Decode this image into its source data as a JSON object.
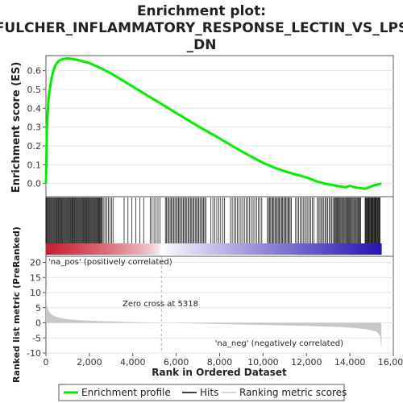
{
  "chart_data": {
    "type": "line",
    "title_lines": [
      "Enrichment plot:",
      "FULCHER_INFLAMMATORY_RESPONSE_LECTIN_VS_LPS",
      "_DN"
    ],
    "top_panel": {
      "ylabel": "Enrichment score (ES)",
      "ylim": [
        -0.07,
        0.68
      ],
      "yticks": [
        0.0,
        0.1,
        0.2,
        0.3,
        0.4,
        0.5,
        0.6
      ],
      "ytick_labels": [
        "0.0",
        "0.1",
        "0.2",
        "0.3",
        "0.4",
        "0.5",
        "0.6"
      ],
      "series": [
        {
          "name": "Enrichment profile",
          "color": "#00ee00",
          "x": [
            0,
            50,
            120,
            200,
            300,
            400,
            500,
            600,
            700,
            800,
            900,
            1000,
            1200,
            1500,
            2000,
            2500,
            3000,
            3500,
            4000,
            4500,
            5000,
            5500,
            6000,
            6500,
            7000,
            7500,
            8000,
            8500,
            9000,
            9500,
            10000,
            10500,
            11000,
            11500,
            12000,
            12500,
            13000,
            13200,
            13500,
            13800,
            14000,
            14200,
            14500,
            14700,
            14900,
            15100,
            15300,
            15450
          ],
          "y": [
            0.0,
            0.3,
            0.45,
            0.52,
            0.58,
            0.62,
            0.64,
            0.652,
            0.658,
            0.662,
            0.664,
            0.665,
            0.663,
            0.656,
            0.64,
            0.615,
            0.585,
            0.55,
            0.515,
            0.48,
            0.445,
            0.41,
            0.375,
            0.34,
            0.305,
            0.272,
            0.24,
            0.205,
            0.172,
            0.14,
            0.11,
            0.085,
            0.065,
            0.048,
            0.032,
            0.01,
            -0.005,
            -0.008,
            -0.015,
            -0.02,
            -0.012,
            -0.02,
            -0.025,
            -0.028,
            -0.02,
            -0.01,
            -0.005,
            0.0
          ]
        }
      ]
    },
    "hits": {
      "total_genes": 15450,
      "segments": [
        {
          "from": 0,
          "to": 2600,
          "step": 35
        },
        {
          "from": 2600,
          "to": 3100,
          "step": 70
        },
        {
          "from": 3600,
          "to": 4600,
          "step": 180
        },
        {
          "from": 4800,
          "to": 5300,
          "step": 90
        },
        {
          "from": 5500,
          "to": 7400,
          "step": 55
        },
        {
          "from": 7600,
          "to": 8300,
          "step": 90
        },
        {
          "from": 8500,
          "to": 10000,
          "step": 80
        },
        {
          "from": 10200,
          "to": 11300,
          "step": 50
        },
        {
          "from": 11500,
          "to": 12400,
          "step": 70
        },
        {
          "from": 12500,
          "to": 13300,
          "step": 60
        },
        {
          "from": 13300,
          "to": 14500,
          "step": 40
        },
        {
          "from": 14700,
          "to": 15400,
          "step": 30
        }
      ]
    },
    "bottom_panel": {
      "ylabel": "Ranked list metric (PreRanked)",
      "ylim": [
        -10,
        22
      ],
      "yticks": [
        -10,
        -5,
        0,
        5,
        10,
        15,
        20
      ],
      "ytick_labels": [
        "-10",
        "-5",
        "0",
        "5",
        "10",
        "15",
        "20"
      ],
      "series": [
        {
          "name": "Ranking metric scores",
          "color": "#c8c8c8",
          "x": [
            0,
            20,
            60,
            120,
            200,
            300,
            400,
            600,
            800,
            1000,
            1500,
            2000,
            3000,
            4000,
            5000,
            5318,
            6000,
            7000,
            8000,
            9000,
            10000,
            11000,
            12000,
            13000,
            13500,
            14000,
            14500,
            14800,
            15000,
            15200,
            15300,
            15400,
            15450
          ],
          "y": [
            13,
            8,
            5.5,
            4,
            3.2,
            2.6,
            2.2,
            1.7,
            1.4,
            1.2,
            0.9,
            0.7,
            0.45,
            0.25,
            0.08,
            0.0,
            -0.1,
            -0.25,
            -0.4,
            -0.55,
            -0.7,
            -0.85,
            -1.0,
            -1.25,
            -1.4,
            -1.6,
            -1.9,
            -2.2,
            -2.5,
            -2.9,
            -3.4,
            -4.5,
            -9.0
          ]
        }
      ],
      "zero_cross": 5318,
      "zero_cross_label": "Zero cross at 5318",
      "pos_label": "'na_pos' (positively correlated)",
      "neg_label": "'na_neg' (negatively correlated)"
    },
    "xlabel": "Rank in Ordered Dataset",
    "xlim": [
      0,
      16000
    ],
    "xticks": [
      0,
      2000,
      4000,
      6000,
      8000,
      10000,
      12000,
      14000,
      16000
    ],
    "xtick_labels": [
      "0",
      "2,000",
      "4,000",
      "6,000",
      "8,000",
      "10,000",
      "12,000",
      "14,000",
      "16,000"
    ],
    "legend": {
      "placement": "bottom",
      "entries": [
        {
          "label": "Enrichment profile",
          "color": "#00ee00"
        },
        {
          "label": "Hits",
          "color": "#000000"
        },
        {
          "label": "Ranking metric scores",
          "color": "#c8c8c8"
        }
      ]
    },
    "colors": {
      "pos_text": "#dd2222",
      "neg_text": "#2222cc",
      "zero_line": "#aaaaaa",
      "frame": "#555555"
    }
  }
}
